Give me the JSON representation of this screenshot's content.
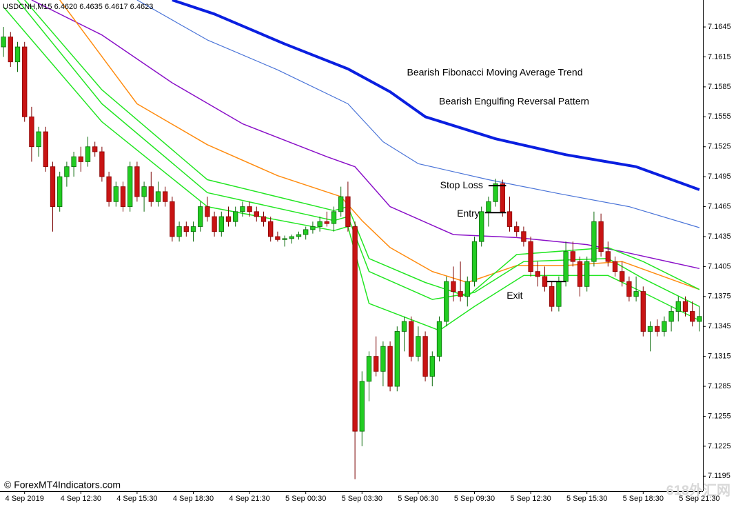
{
  "chart_data": {
    "type": "candlestick",
    "header": "USDCNH,M15  6.4620 6.4635 6.4617 6.4623",
    "annotations": [
      "Bearish Fibonacci Moving Average Trend",
      "Bearish Engulfing Reversal Pattern"
    ],
    "copyright": "© ForexMT4Indicators.com",
    "watermark": "618外汇网",
    "up_color": "#22cc22",
    "down_color": "#c81414",
    "xlim": [
      -0.5,
      99.5
    ],
    "ylim": [
      7.118,
      7.1672
    ],
    "xticks": [
      {
        "value": 3,
        "label": "4 Sep 2019"
      },
      {
        "value": 11,
        "label": "4 Sep 12:30"
      },
      {
        "value": 19,
        "label": "4 Sep 15:30"
      },
      {
        "value": 27,
        "label": "4 Sep 18:30"
      },
      {
        "value": 35,
        "label": "4 Sep 21:30"
      },
      {
        "value": 43,
        "label": "5 Sep 00:30"
      },
      {
        "value": 51,
        "label": "5 Sep 03:30"
      },
      {
        "value": 59,
        "label": "5 Sep 06:30"
      },
      {
        "value": 67,
        "label": "5 Sep 09:30"
      },
      {
        "value": 75,
        "label": "5 Sep 12:30"
      },
      {
        "value": 83,
        "label": "5 Sep 15:30"
      },
      {
        "value": 91,
        "label": "5 Sep 18:30"
      },
      {
        "value": 99,
        "label": "5 Sep 21:30"
      }
    ],
    "yticks": [
      7.1195,
      7.1225,
      7.1255,
      7.1285,
      7.1315,
      7.1345,
      7.1375,
      7.1405,
      7.1435,
      7.1465,
      7.1495,
      7.1525,
      7.1555,
      7.1585,
      7.1615,
      7.1645
    ],
    "open": [
      7.1625,
      7.1635,
      7.161,
      7.1625,
      7.1555,
      7.1525,
      7.154,
      7.1505,
      7.1465,
      7.1495,
      7.1505,
      7.1515,
      7.151,
      7.1525,
      7.152,
      7.1495,
      7.147,
      7.1485,
      7.1465,
      7.1505,
      7.1475,
      7.1485,
      7.147,
      7.148,
      7.147,
      7.1435,
      7.1445,
      7.144,
      7.1445,
      7.1465,
      7.1455,
      7.144,
      7.1455,
      7.145,
      7.146,
      7.1465,
      7.146,
      7.1455,
      7.145,
      7.1435,
      7.1432,
      7.1433,
      7.1435,
      7.1437,
      7.1442,
      7.1445,
      7.145,
      7.1448,
      7.146,
      7.1475,
      7.1445,
      7.124,
      7.129,
      7.1315,
      7.13,
      7.1325,
      7.1285,
      7.134,
      7.135,
      7.1315,
      7.1335,
      7.1295,
      7.1315,
      7.135,
      7.139,
      7.138,
      7.1375,
      7.139,
      7.143,
      7.146,
      7.147,
      7.1488,
      7.146,
      7.1445,
      7.144,
      7.143,
      7.14,
      7.1395,
      7.1385,
      7.1365,
      7.139,
      7.142,
      7.141,
      7.1385,
      7.141,
      7.145,
      7.142,
      7.141,
      7.14,
      7.139,
      7.1375,
      7.138,
      7.134,
      7.1345,
      7.134,
      7.135,
      7.136,
      7.137,
      7.136,
      7.135
    ],
    "high": [
      7.1645,
      7.164,
      7.163,
      7.163,
      7.1565,
      7.1545,
      7.1545,
      7.151,
      7.15,
      7.151,
      7.152,
      7.1525,
      7.1535,
      7.153,
      7.1525,
      7.15,
      7.149,
      7.149,
      7.151,
      7.151,
      7.149,
      7.15,
      7.149,
      7.1485,
      7.1475,
      7.145,
      7.145,
      7.145,
      7.147,
      7.1475,
      7.146,
      7.146,
      7.1465,
      7.1465,
      7.147,
      7.147,
      7.1465,
      7.146,
      7.1455,
      7.144,
      7.1436,
      7.1437,
      7.144,
      7.1445,
      7.145,
      7.1455,
      7.146,
      7.1465,
      7.1485,
      7.149,
      7.145,
      7.13,
      7.132,
      7.1335,
      7.133,
      7.133,
      7.1345,
      7.1355,
      7.1355,
      7.1345,
      7.134,
      7.132,
      7.1355,
      7.1395,
      7.1405,
      7.141,
      7.1395,
      7.1435,
      7.1465,
      7.1475,
      7.1493,
      7.1492,
      7.1475,
      7.145,
      7.1445,
      7.1435,
      7.141,
      7.1405,
      7.139,
      7.1395,
      7.143,
      7.143,
      7.1415,
      7.1415,
      7.146,
      7.1458,
      7.143,
      7.1415,
      7.141,
      7.1395,
      7.1395,
      7.1385,
      7.135,
      7.1352,
      7.1355,
      7.1365,
      7.1375,
      7.1375,
      7.137,
      7.1365
    ],
    "low": [
      7.1615,
      7.1605,
      7.16,
      7.155,
      7.151,
      7.1515,
      7.15,
      7.144,
      7.146,
      7.1485,
      7.1495,
      7.15,
      7.1505,
      7.1515,
      7.149,
      7.1465,
      7.1465,
      7.146,
      7.146,
      7.147,
      7.146,
      7.1465,
      7.1465,
      7.1465,
      7.143,
      7.143,
      7.1435,
      7.143,
      7.144,
      7.145,
      7.1435,
      7.1435,
      7.1445,
      7.1445,
      7.1455,
      7.1455,
      7.145,
      7.1445,
      7.143,
      7.143,
      7.1425,
      7.1428,
      7.1432,
      7.1432,
      7.1438,
      7.144,
      7.1445,
      7.144,
      7.1455,
      7.144,
      7.1192,
      7.1225,
      7.127,
      7.1295,
      7.1285,
      7.128,
      7.128,
      7.132,
      7.131,
      7.131,
      7.129,
      7.1285,
      7.131,
      7.1345,
      7.137,
      7.137,
      7.1365,
      7.1385,
      7.1425,
      7.1445,
      7.1465,
      7.1455,
      7.144,
      7.1435,
      7.1425,
      7.1395,
      7.1385,
      7.138,
      7.136,
      7.136,
      7.1385,
      7.1405,
      7.1375,
      7.138,
      7.1405,
      7.1415,
      7.1405,
      7.1395,
      7.1385,
      7.137,
      7.137,
      7.1335,
      7.132,
      7.1335,
      7.1335,
      7.134,
      7.135,
      7.1355,
      7.1345,
      7.134
    ],
    "close": [
      7.1635,
      7.161,
      7.1625,
      7.1555,
      7.1525,
      7.154,
      7.1505,
      7.1465,
      7.1495,
      7.1505,
      7.1515,
      7.151,
      7.1525,
      7.152,
      7.1495,
      7.147,
      7.1485,
      7.1465,
      7.1505,
      7.1475,
      7.1485,
      7.147,
      7.148,
      7.147,
      7.1435,
      7.1445,
      7.144,
      7.1445,
      7.1465,
      7.1455,
      7.144,
      7.1455,
      7.145,
      7.146,
      7.1465,
      7.146,
      7.1455,
      7.145,
      7.1435,
      7.1432,
      7.1433,
      7.1435,
      7.1437,
      7.1442,
      7.1445,
      7.145,
      7.1448,
      7.146,
      7.1475,
      7.1445,
      7.124,
      7.129,
      7.1315,
      7.13,
      7.1325,
      7.1285,
      7.134,
      7.135,
      7.1315,
      7.1335,
      7.1295,
      7.1315,
      7.135,
      7.139,
      7.138,
      7.1375,
      7.139,
      7.143,
      7.146,
      7.147,
      7.1488,
      7.146,
      7.1445,
      7.144,
      7.143,
      7.14,
      7.1395,
      7.1385,
      7.1365,
      7.139,
      7.142,
      7.141,
      7.1385,
      7.141,
      7.145,
      7.142,
      7.141,
      7.14,
      7.139,
      7.1375,
      7.138,
      7.134,
      7.1345,
      7.134,
      7.135,
      7.136,
      7.137,
      7.136,
      7.135,
      7.1355
    ],
    "series": [
      {
        "color": "#0a1fe0",
        "width": 4,
        "x": [
          24,
          30,
          40,
          49,
          55,
          60,
          70,
          80,
          90,
          99
        ],
        "values": [
          7.1672,
          7.1658,
          7.1628,
          7.1603,
          7.158,
          7.1555,
          7.1533,
          7.1517,
          7.1505,
          7.1482
        ]
      },
      {
        "color": "#4a74d8",
        "width": 1.2,
        "x": [
          19,
          29,
          39,
          49,
          54,
          59,
          69,
          79,
          89,
          99
        ],
        "values": [
          7.1672,
          7.1632,
          7.1602,
          7.1568,
          7.153,
          7.1508,
          7.1492,
          7.1478,
          7.1465,
          7.1444
        ]
      },
      {
        "color": "#8a10c8",
        "width": 1.5,
        "x": [
          4,
          14,
          24,
          34,
          46,
          50,
          55,
          64,
          73,
          83,
          88,
          99
        ],
        "values": [
          7.1672,
          7.1637,
          7.1589,
          7.1548,
          7.1515,
          7.1505,
          7.1465,
          7.1437,
          7.1434,
          7.1427,
          7.142,
          7.1403
        ]
      },
      {
        "color": "#ff8c10",
        "width": 1.5,
        "x": [
          8,
          19,
          29,
          39,
          48,
          51,
          55,
          61,
          66,
          73,
          80,
          88,
          99
        ],
        "values": [
          7.1672,
          7.1568,
          7.1527,
          7.1496,
          7.1475,
          7.1451,
          7.1424,
          7.14,
          7.1389,
          7.1406,
          7.1406,
          7.141,
          7.1382
        ]
      },
      {
        "color": "#22e622",
        "width": 1.5,
        "x": [
          3,
          14,
          29,
          47,
          49,
          52,
          60,
          66,
          73,
          86,
          91,
          99
        ],
        "values": [
          7.1672,
          7.1582,
          7.1492,
          7.1461,
          7.1465,
          7.1413,
          7.1389,
          7.1375,
          7.1417,
          7.1424,
          7.141,
          7.1382
        ]
      },
      {
        "color": "#22e622",
        "width": 1.5,
        "x": [
          2,
          14,
          29,
          47,
          49,
          52,
          61,
          67,
          74,
          86,
          91,
          99
        ],
        "values": [
          7.1672,
          7.1568,
          7.1479,
          7.1451,
          7.1455,
          7.14,
          7.1372,
          7.1379,
          7.141,
          7.1413,
          7.1393,
          7.1365
        ]
      },
      {
        "color": "#22e622",
        "width": 1.5,
        "x": [
          0,
          14,
          29,
          47,
          49,
          52,
          62,
          67,
          74,
          86,
          91,
          99
        ],
        "values": [
          7.1665,
          7.155,
          7.1465,
          7.1441,
          7.1445,
          7.1368,
          7.1341,
          7.1365,
          7.1396,
          7.1396,
          7.1379,
          7.1351
        ]
      }
    ],
    "levels": [
      {
        "label": "Stop Loss",
        "price": 7.1486,
        "from": 69,
        "to": 71.5
      },
      {
        "label": "Entry",
        "price": 7.1459,
        "from": 68.5,
        "to": 71.5
      },
      {
        "label": "Exit",
        "price": 7.139,
        "from": 77.3,
        "to": 80
      }
    ]
  }
}
